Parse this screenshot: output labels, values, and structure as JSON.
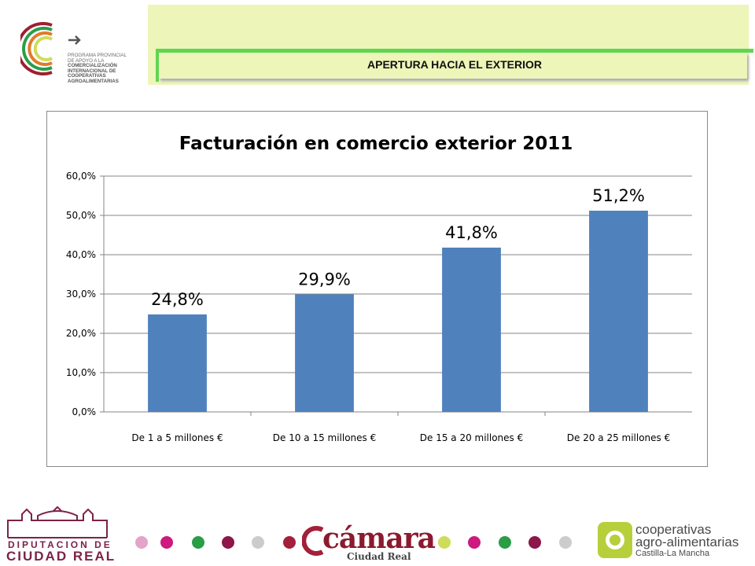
{
  "header": {
    "logo_lines": [
      "PROGRAMA PROVINCIAL",
      "DE APOYO A LA",
      "COMERCIALIZACIÓN",
      "INTERNACIONAL DE",
      "COOPERATIVAS",
      "AGROALIMENTARIAS"
    ],
    "section_title": "APERTURA HACIA EL EXTERIOR"
  },
  "chart_data": {
    "type": "bar",
    "title": "Facturación en comercio exterior 2011",
    "categories": [
      "De 1 a 5 millones €",
      "De 10 a 15 millones €",
      "De 15 a 20 millones €",
      "De 20 a 25 millones €"
    ],
    "values": [
      24.8,
      29.9,
      41.8,
      51.2
    ],
    "data_labels": [
      "24,8%",
      "29,9%",
      "41,8%",
      "51,2%"
    ],
    "ylim": [
      0,
      60
    ],
    "yticks": [
      "0,0%",
      "10,0%",
      "20,0%",
      "30,0%",
      "40,0%",
      "50,0%",
      "60,0%"
    ],
    "grid": true,
    "bar_color": "#4f81bd"
  },
  "footer": {
    "dip_line1": "DIPUTACION DE",
    "dip_line2": "CIUDAD REAL",
    "camara_name": "cámara",
    "camara_sub": "Ciudad Real",
    "coop_line1": "cooperativas",
    "coop_line2": "agro-alimentarias",
    "coop_line3": "Castilla-La Mancha",
    "dot_colors": [
      "#e4a3c9",
      "#cc1a7f",
      "#2a9d47",
      "#8c1748",
      "#cccccc",
      "#a31f3a",
      "#cfdc5a",
      "#cc1a7f",
      "#2a9d47",
      "#8c1748",
      "#cccccc"
    ]
  }
}
